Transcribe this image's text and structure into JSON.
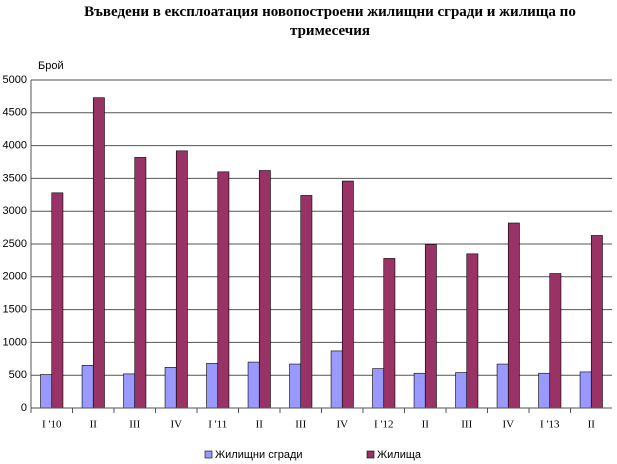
{
  "chart_data": {
    "type": "bar",
    "title": "Въведени в експлоатация новопостроени жилищни сгради и жилища по тримесечия",
    "ylabel": "Брой",
    "categories": [
      "I '10",
      "II",
      "III",
      "IV",
      "I '11",
      "II",
      "III",
      "IV",
      "I '12",
      "II",
      "III",
      "IV",
      "I '13",
      "II"
    ],
    "series": [
      {
        "name": "Жилищни сгради",
        "color": "#9999ff",
        "values": [
          510,
          650,
          520,
          620,
          680,
          700,
          670,
          870,
          600,
          530,
          540,
          670,
          530,
          550
        ]
      },
      {
        "name": "Жилища",
        "color": "#993366",
        "values": [
          3280,
          4730,
          3820,
          3920,
          3600,
          3620,
          3240,
          3460,
          2280,
          2490,
          2350,
          2820,
          2050,
          2630
        ]
      }
    ],
    "ylim": [
      0,
      5000
    ],
    "yticks": [
      0,
      500,
      1000,
      1500,
      2000,
      2500,
      3000,
      3500,
      4000,
      4500,
      5000
    ],
    "grid": true,
    "legend": "bottom"
  }
}
